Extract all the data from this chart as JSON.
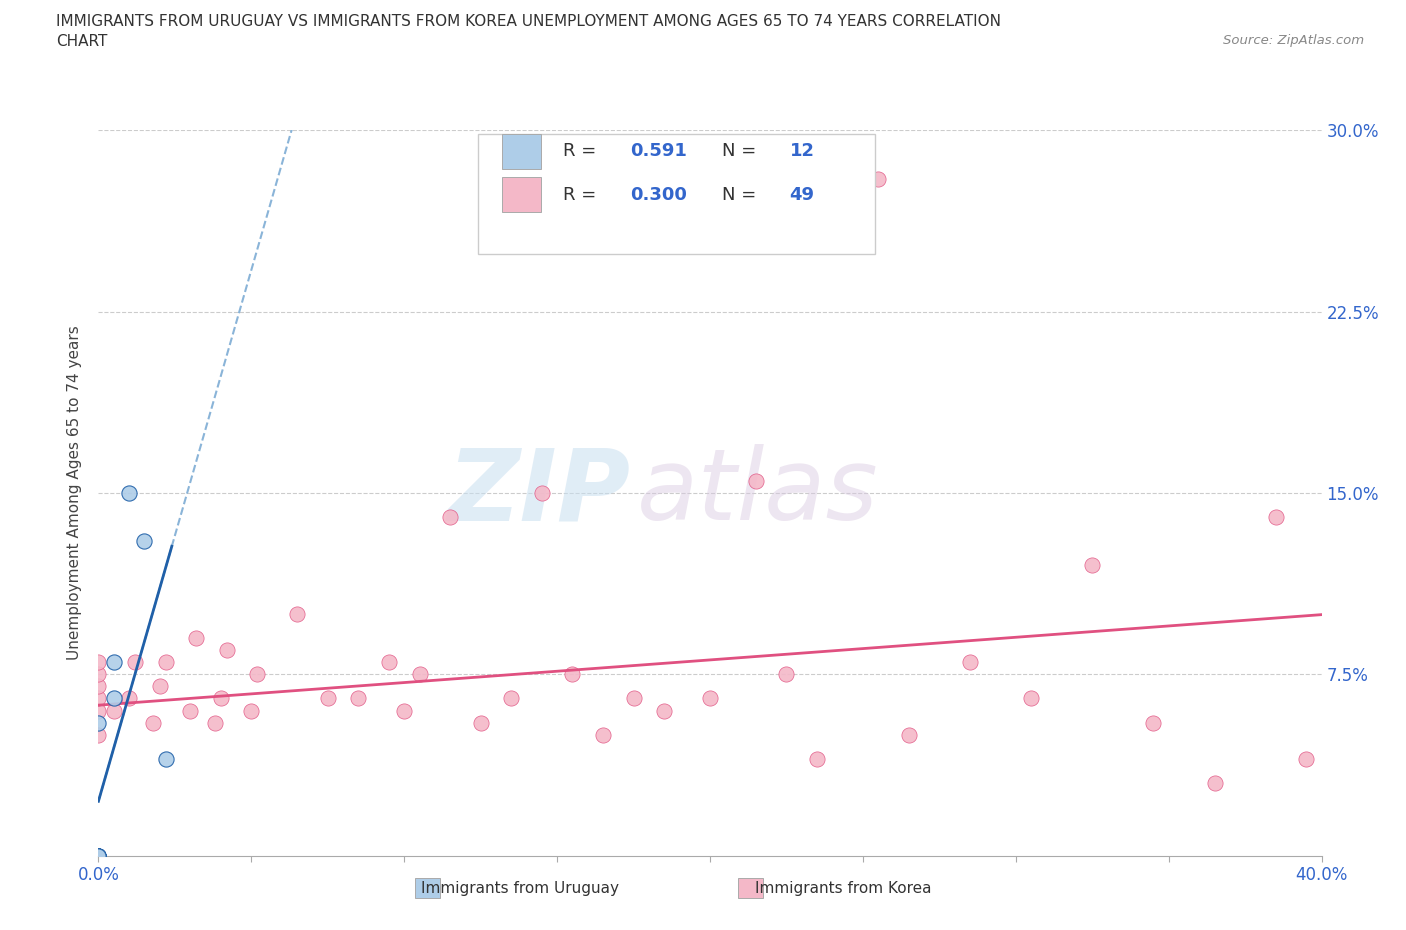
{
  "title_line1": "IMMIGRANTS FROM URUGUAY VS IMMIGRANTS FROM KOREA UNEMPLOYMENT AMONG AGES 65 TO 74 YEARS CORRELATION",
  "title_line2": "CHART",
  "source": "Source: ZipAtlas.com",
  "ylabel": "Unemployment Among Ages 65 to 74 years",
  "xmin": 0.0,
  "xmax": 0.4,
  "ymin": 0.0,
  "ymax": 0.3,
  "yticks": [
    0.0,
    0.075,
    0.15,
    0.225,
    0.3
  ],
  "xticks": [
    0.0,
    0.05,
    0.1,
    0.15,
    0.2,
    0.25,
    0.3,
    0.35,
    0.4
  ],
  "xtick_labels_show": [
    "0.0%",
    "40.0%"
  ],
  "watermark_zip": "ZIP",
  "watermark_atlas": "atlas",
  "legend_label1": "Immigrants from Uruguay",
  "legend_label2": "Immigrants from Korea",
  "r1": 0.591,
  "n1": 12,
  "r2": 0.3,
  "n2": 49,
  "color_uruguay": "#aecde8",
  "color_korea": "#f4b8c8",
  "color_trendline_uruguay": "#2060a8",
  "color_trendline_korea": "#e05080",
  "color_axis_labels": "#3366cc",
  "color_gridline": "#cccccc",
  "uruguay_x": [
    0.0,
    0.0,
    0.0,
    0.0,
    0.0,
    0.0,
    0.0,
    0.005,
    0.005,
    0.01,
    0.015,
    0.022
  ],
  "uruguay_y": [
    0.0,
    0.0,
    0.0,
    0.0,
    0.0,
    0.0,
    0.055,
    0.065,
    0.08,
    0.15,
    0.13,
    0.04
  ],
  "korea_x": [
    0.0,
    0.0,
    0.0,
    0.0,
    0.0,
    0.0,
    0.0,
    0.0,
    0.0,
    0.005,
    0.01,
    0.012,
    0.018,
    0.02,
    0.022,
    0.03,
    0.032,
    0.038,
    0.04,
    0.042,
    0.05,
    0.052,
    0.065,
    0.075,
    0.085,
    0.095,
    0.1,
    0.105,
    0.115,
    0.125,
    0.135,
    0.145,
    0.155,
    0.165,
    0.175,
    0.185,
    0.2,
    0.215,
    0.225,
    0.235,
    0.255,
    0.265,
    0.285,
    0.305,
    0.325,
    0.345,
    0.365,
    0.385,
    0.395
  ],
  "korea_y": [
    0.0,
    0.0,
    0.0,
    0.05,
    0.06,
    0.065,
    0.07,
    0.075,
    0.08,
    0.06,
    0.065,
    0.08,
    0.055,
    0.07,
    0.08,
    0.06,
    0.09,
    0.055,
    0.065,
    0.085,
    0.06,
    0.075,
    0.1,
    0.065,
    0.065,
    0.08,
    0.06,
    0.075,
    0.14,
    0.055,
    0.065,
    0.15,
    0.075,
    0.05,
    0.065,
    0.06,
    0.065,
    0.155,
    0.075,
    0.04,
    0.28,
    0.05,
    0.08,
    0.065,
    0.12,
    0.055,
    0.03,
    0.14,
    0.04
  ]
}
